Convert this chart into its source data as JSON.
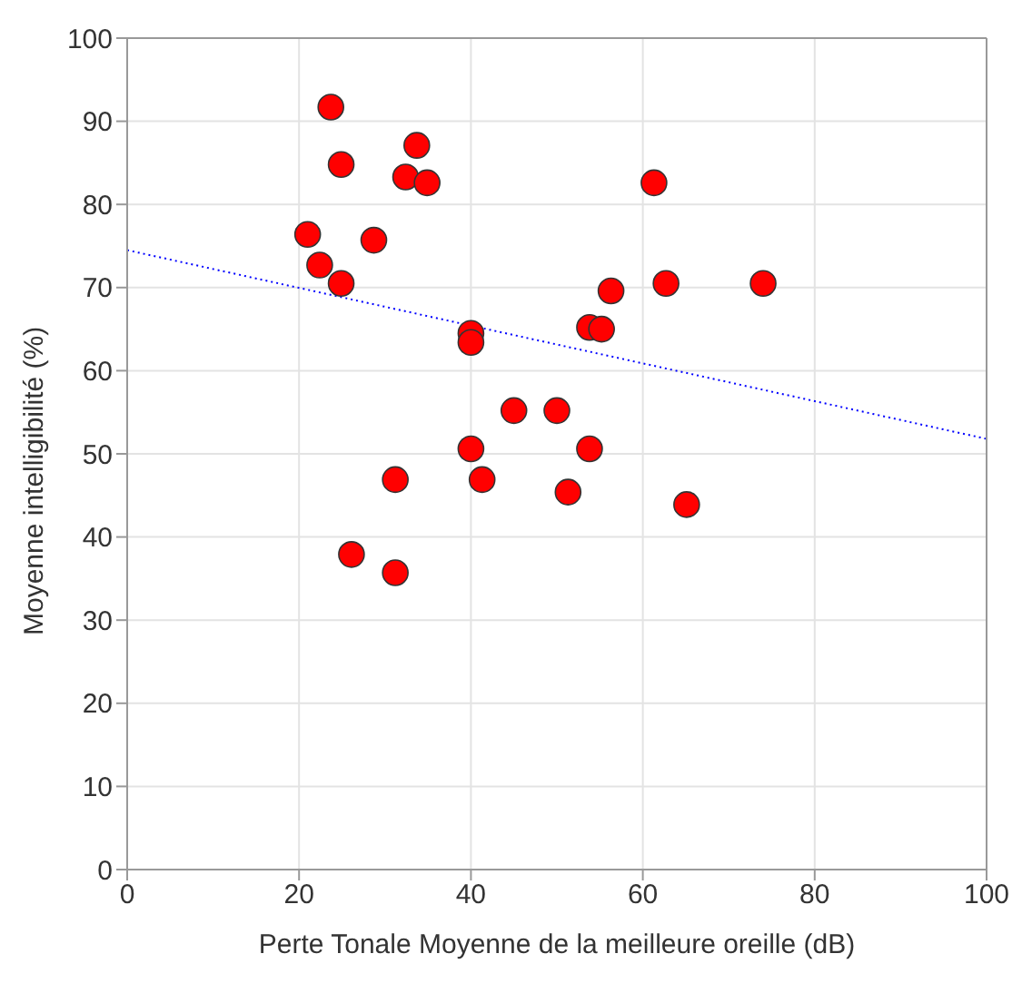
{
  "chart_data": {
    "type": "scatter",
    "xlabel": "Perte Tonale Moyenne de la meilleure oreille (dB)",
    "ylabel": "Moyenne intelligibilité (%)",
    "xlim": [
      0,
      100
    ],
    "xticks": [
      0,
      20,
      40,
      60,
      80,
      100
    ],
    "ylim": [
      0,
      100
    ],
    "yticks": [
      0,
      10,
      20,
      30,
      40,
      50,
      60,
      70,
      80,
      90,
      100
    ],
    "grid": true,
    "legend": false,
    "marker": "circle",
    "series": [
      {
        "type": "scatter",
        "color": "#ff0000",
        "x": [
          23.7,
          33.7,
          24.9,
          32.4,
          34.9,
          61.3,
          21.0,
          28.7,
          22.4,
          24.9,
          56.3,
          40.0,
          40.0,
          53.8,
          55.2,
          45.0,
          50.0,
          40.0,
          53.8,
          31.2,
          41.3,
          51.3,
          26.1,
          31.2,
          65.1,
          74.0,
          62.7
        ],
        "values": [
          91.7,
          87.1,
          84.8,
          83.3,
          82.6,
          82.6,
          76.4,
          75.7,
          72.7,
          70.5,
          69.6,
          64.5,
          63.4,
          65.2,
          65.0,
          55.2,
          55.2,
          50.6,
          50.6,
          46.9,
          46.9,
          45.4,
          37.9,
          35.7,
          43.9,
          70.5,
          70.5
        ]
      },
      {
        "type": "line",
        "color": "#0000ff",
        "line_style": "dotted",
        "marker": "none",
        "x": [
          0,
          100
        ],
        "values": [
          74.5,
          51.8
        ]
      }
    ]
  }
}
